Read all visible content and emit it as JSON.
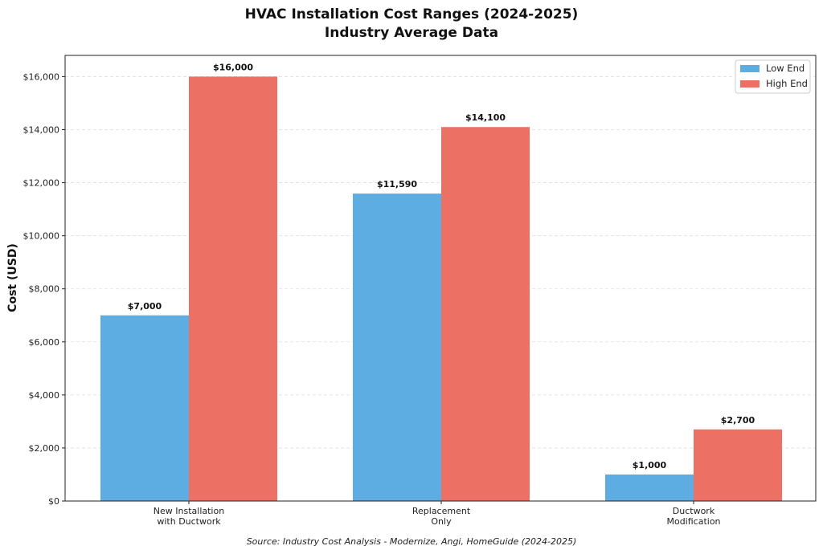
{
  "chart_data": {
    "type": "bar",
    "title": "HVAC Installation Cost Ranges (2024-2025)",
    "subtitle": "Industry Average Data",
    "xlabel": "",
    "ylabel": "Cost (USD)",
    "ylim": [
      0,
      16800
    ],
    "yticks": [
      0,
      2000,
      4000,
      6000,
      8000,
      10000,
      12000,
      14000,
      16000
    ],
    "ytick_labels": [
      "$0",
      "$2,000",
      "$4,000",
      "$6,000",
      "$8,000",
      "$10,000",
      "$12,000",
      "$14,000",
      "$16,000"
    ],
    "categories": [
      [
        "New Installation",
        "with Ductwork"
      ],
      [
        "Replacement",
        "Only"
      ],
      [
        "Ductwork",
        "Modification"
      ]
    ],
    "series": [
      {
        "name": "Low End",
        "color": "#5DADE2",
        "values": [
          7000,
          11590,
          1000
        ],
        "labels": [
          "$7,000",
          "$11,590",
          "$1,000"
        ]
      },
      {
        "name": "High End",
        "color": "#EC7063",
        "values": [
          16000,
          14100,
          2700
        ],
        "labels": [
          "$16,000",
          "$14,100",
          "$2,700"
        ]
      }
    ],
    "grid": true,
    "legend_position": "top-right",
    "annotation": "Source: Industry Cost Analysis - Modernize, Angi, HomeGuide (2024-2025)"
  }
}
